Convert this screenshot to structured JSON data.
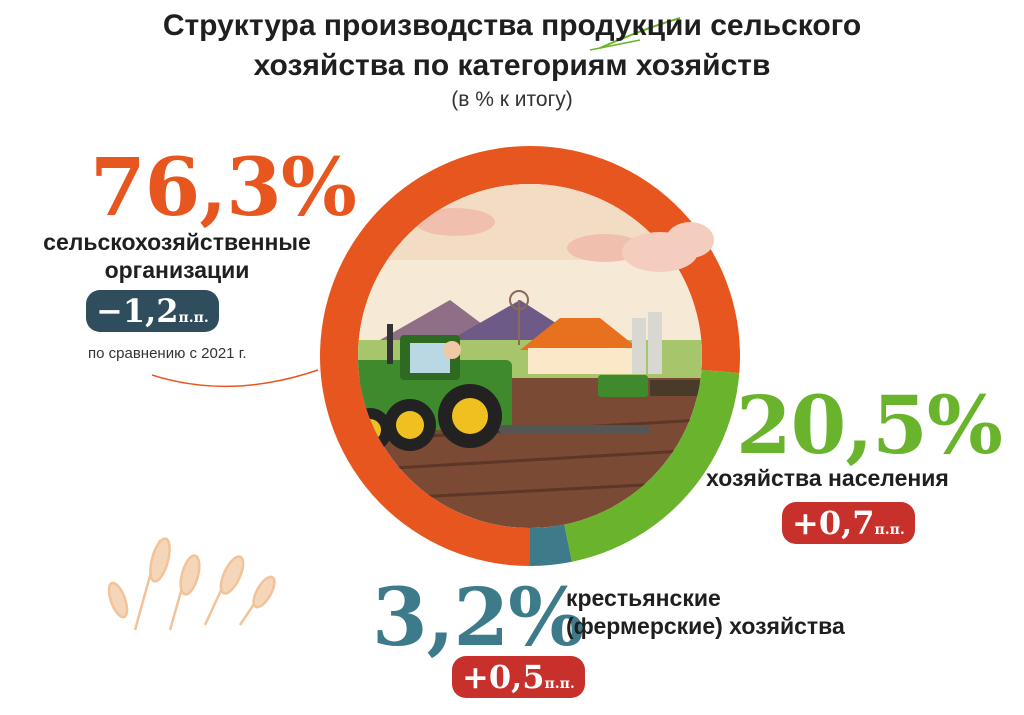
{
  "title_line1": "Структура производства продукции сельского",
  "title_line2": "хозяйства по категориям хозяйств",
  "subtitle": "(в % к итогу)",
  "note": "по сравнению с 2021 г.",
  "colors": {
    "organizations": "#e8561f",
    "households": "#6ab42d",
    "farmers": "#3d7a8a",
    "badge_negative": "#2f4d5c",
    "badge_positive": "#c8302c"
  },
  "chart_data": {
    "type": "pie",
    "donut": true,
    "labels": [
      "сельскохозяйственные организации",
      "хозяйства населения",
      "крестьянские (фермерские) хозяйства"
    ],
    "values": [
      76.3,
      20.5,
      3.2
    ],
    "changes": [
      -1.2,
      0.7,
      0.5
    ],
    "change_unit": "п.п."
  },
  "segments": [
    {
      "pct": "76,3%",
      "label_line1": "сельскохозяйственные",
      "label_line2": "организации",
      "change": "−1,2",
      "unit": "п.п."
    },
    {
      "pct": "20,5%",
      "label_line1": "хозяйства населения",
      "change": "+0,7",
      "unit": "п.п."
    },
    {
      "pct": "3,2%",
      "label_line1": "крестьянские",
      "label_line2": "(фермерские) хозяйства",
      "change": "+0,5",
      "unit": "п.п."
    }
  ]
}
